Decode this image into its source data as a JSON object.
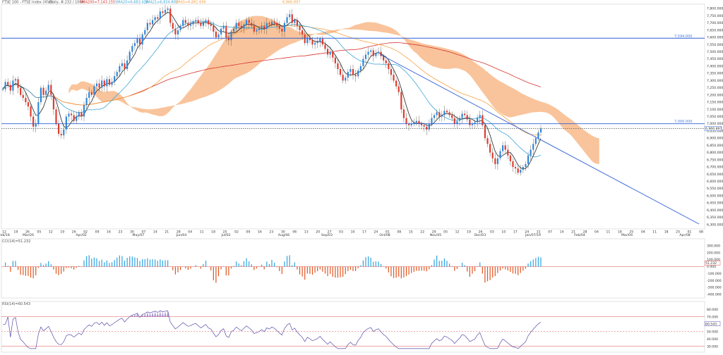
{
  "header": {
    "instrument": "FTSE 100 - FTSE Index (Xfat)",
    "info": "Daily, #:232 / 1000,",
    "sma200": "SMA200=7,143.155",
    "sma20": "SMA20=6,683.428",
    "sma21b": "SMA21=6,834.802",
    "sma5": "SMA5=6,881.606",
    "last": "6,966.897"
  },
  "colors": {
    "up": "#2f86d9",
    "down": "#e0392b",
    "wick": "#444444",
    "cloud": "#f7b07a",
    "cloud_dark": "#8a8a8a",
    "sma200": "#d7352e",
    "sma50": "#f5a142",
    "sma20": "#3fa7d6",
    "sma5": "#222222",
    "hline": "#2f5fd6",
    "trend": "#2f5fd6",
    "price_tag": "#3f6fd8",
    "cci_pos": "#2fa3e0",
    "cci_neg": "#e0551f",
    "rsi": "#5a4ea8",
    "rsi_fill": "#9b82c9",
    "ref_red": "#d9534f"
  },
  "main_panel": {
    "y_ticks": [
      "7,800.000",
      "7,750.000",
      "7,700.000",
      "7,650.000",
      "7,600.000",
      "7,550.000",
      "7,500.000",
      "7,450.000",
      "7,400.000",
      "7,350.000",
      "7,300.000",
      "7,250.000",
      "7,200.000",
      "7,150.000",
      "7,100.000",
      "7,050.000",
      "7,000.000",
      "6,950.000",
      "6,900.000",
      "6,850.000",
      "6,800.000",
      "6,750.000",
      "6,700.000",
      "6,650.000",
      "6,600.000",
      "6,550.000",
      "6,500.000",
      "6,450.000",
      "6,400.000",
      "6,350.000",
      "6,300.000"
    ],
    "level_high": "7,594.000",
    "level_low": "7,000.000",
    "price_label": "6,966.897",
    "x_ticks": [
      "12",
      "19",
      "26",
      "05",
      "12",
      "19",
      "26",
      "02",
      "09",
      "16",
      "23",
      "30",
      "07",
      "14",
      "21",
      "28",
      "04",
      "11",
      "18",
      "25",
      "02",
      "09",
      "16",
      "23",
      "30",
      "06",
      "13",
      "20",
      "27",
      "03",
      "10",
      "17",
      "24",
      "01",
      "08",
      "15",
      "22",
      "29",
      "05",
      "12",
      "19",
      "26",
      "03",
      "10",
      "17",
      "24",
      "31",
      "07",
      "14",
      "21",
      "28",
      "04",
      "11",
      "18",
      "25",
      "04",
      "11",
      "18",
      "25",
      "01",
      "08",
      "15"
    ],
    "x_months": [
      "Feb/18",
      "Mar/26",
      "Apr/02",
      "May/07",
      "Jun/04",
      "Jul/02",
      "Aug/06",
      "Sep/03",
      "Oct/08",
      "Nov/05",
      "Dec/03",
      "Jan/07/19",
      "Feb/04",
      "Mar/04",
      "Apr/08"
    ]
  },
  "cci_panel": {
    "label": "CCI(14)=51.232",
    "y_ticks": [
      "300.000",
      "200.000",
      "100.000",
      "0.000",
      "-100.000",
      "-200.000",
      "-300.000",
      "-400.000"
    ],
    "value_tag": "51.232"
  },
  "rsi_panel": {
    "label": "RSI(14)=60.543",
    "y_ticks": [
      "80.000",
      "70.000",
      "60.000",
      "50.000",
      "40.000",
      "30.000"
    ],
    "value_tag": "60.543"
  },
  "chart_data": {
    "type": "candlestick",
    "title": "",
    "xlabel": "",
    "ylabel": "",
    "ylim": [
      6270,
      7830
    ],
    "key_levels": [
      7594,
      7000,
      6966.897
    ],
    "closes": [
      7240,
      7290,
      7270,
      7230,
      7300,
      7310,
      7250,
      7200,
      7180,
      7150,
      7120,
      7050,
      6980,
      7000,
      7150,
      7250,
      7200,
      7230,
      7270,
      7200,
      7100,
      7000,
      6930,
      6920,
      6960,
      7050,
      7070,
      7060,
      7020,
      7050,
      7080,
      7050,
      7130,
      7180,
      7220,
      7200,
      7260,
      7280,
      7250,
      7300,
      7260,
      7310,
      7270,
      7290,
      7330,
      7360,
      7400,
      7420,
      7380,
      7440,
      7500,
      7540,
      7560,
      7590,
      7550,
      7620,
      7650,
      7700,
      7690,
      7720,
      7740,
      7730,
      7780,
      7770,
      7790,
      7800,
      7700,
      7660,
      7620,
      7650,
      7680,
      7720,
      7700,
      7680,
      7690,
      7710,
      7720,
      7700,
      7680,
      7700,
      7720,
      7690,
      7680,
      7640,
      7600,
      7620,
      7660,
      7680,
      7600,
      7580,
      7640,
      7660,
      7700,
      7680,
      7660,
      7690,
      7720,
      7700,
      7680,
      7640,
      7650,
      7660,
      7680,
      7660,
      7700,
      7690,
      7710,
      7700,
      7680,
      7660,
      7640,
      7700,
      7740,
      7760,
      7700,
      7720,
      7680,
      7650,
      7620,
      7560,
      7600,
      7580,
      7550,
      7560,
      7570,
      7590,
      7550,
      7520,
      7480,
      7500,
      7460,
      7420,
      7380,
      7340,
      7300,
      7320,
      7360,
      7380,
      7340,
      7330,
      7370,
      7400,
      7450,
      7480,
      7500,
      7510,
      7470,
      7490,
      7500,
      7470,
      7440,
      7420,
      7380,
      7340,
      7300,
      7260,
      7220,
      7100,
      7040,
      7000,
      6990,
      7000,
      7010,
      7020,
      7000,
      6990,
      6980,
      6960,
      7000,
      7040,
      7060,
      7080,
      7050,
      7060,
      7090,
      7080,
      7060,
      7040,
      7000,
      7020,
      7040,
      7070,
      7060,
      7030,
      6990,
      7000,
      7010,
      7040,
      7060,
      6990,
      6900,
      6860,
      6800,
      6760,
      6720,
      6760,
      6810,
      6850,
      6820,
      6780,
      6740,
      6700,
      6690,
      6660,
      6680,
      6700,
      6720,
      6780,
      6820,
      6860,
      6900,
      6940,
      6966
    ]
  }
}
